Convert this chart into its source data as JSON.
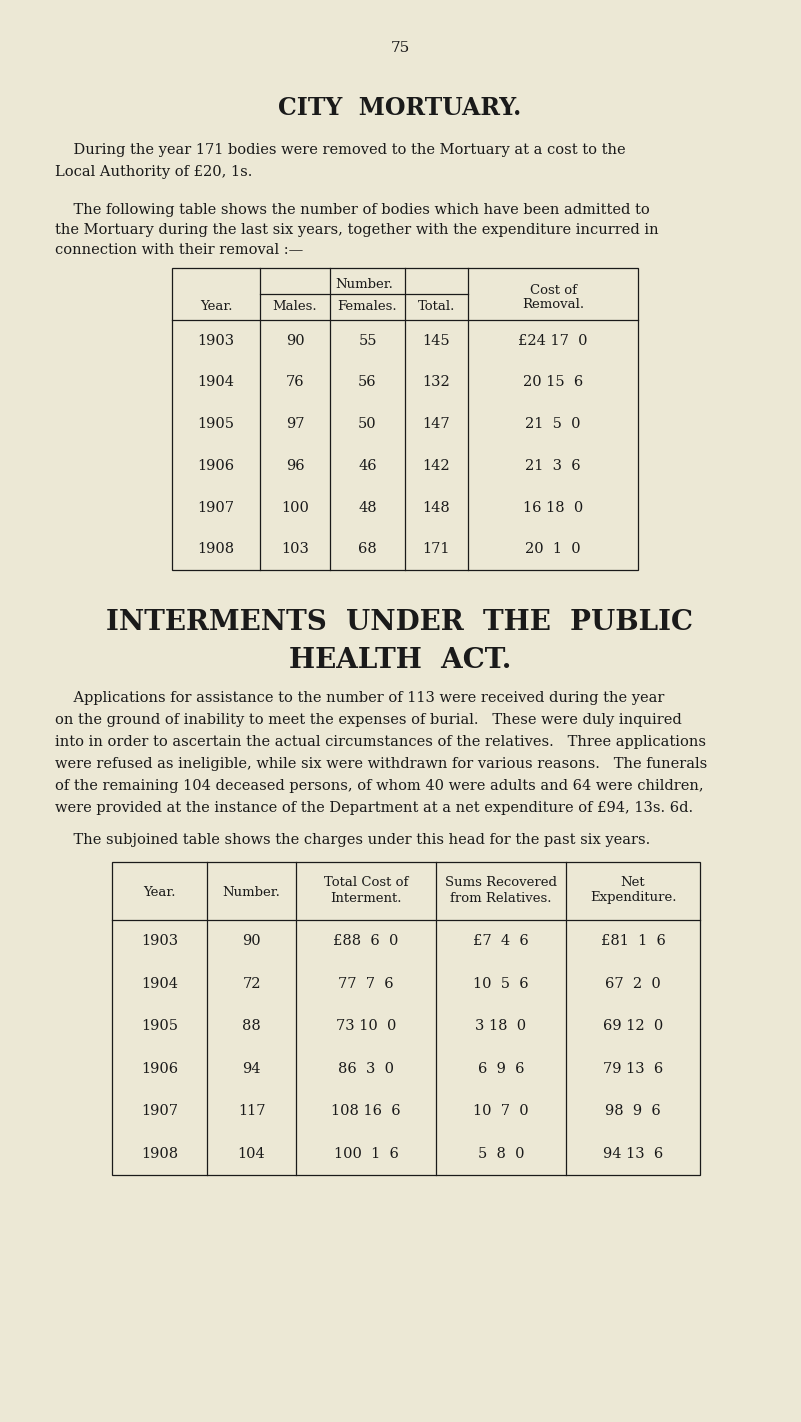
{
  "bg_color": "#ece8d5",
  "text_color": "#1a1a1a",
  "page_number": "75",
  "title1": "CITY  MORTUARY.",
  "para1_line1": "    During the year 171 bodies were removed to the Mortuary at a cost to the",
  "para1_line2": "Local Authority of £20, 1s.",
  "para2_line1": "    The following table shows the number of bodies which have been admitted to",
  "para2_line2": "the Mortuary during the last six years, together with the expenditure incurred in",
  "para2_line3": "connection with their removal :—",
  "table1_data": [
    [
      "1903",
      "90",
      "55",
      "145",
      "£24 17  0"
    ],
    [
      "1904",
      "76",
      "56",
      "132",
      "20 15  6"
    ],
    [
      "1905",
      "97",
      "50",
      "147",
      "21  5  0"
    ],
    [
      "1906",
      "96",
      "46",
      "142",
      "21  3  6"
    ],
    [
      "1907",
      "100",
      "48",
      "148",
      "16 18  0"
    ],
    [
      "1908",
      "103",
      "68",
      "171",
      "20  1  0"
    ]
  ],
  "title2_line1": "INTERMENTS  UNDER  THE  PUBLIC",
  "title2_line2": "HEALTH  ACT.",
  "para3_line1": "    Applications for assistance to the number of 113 were received during the year",
  "para3_line2": "on the ground of inability to meet the expenses of burial.   These were duly inquired",
  "para3_line3": "into in order to ascertain the actual circumstances of the relatives.   Three applications",
  "para3_line4": "were refused as ineligible, while six were withdrawn for various reasons.   The funerals",
  "para3_line5": "of the remaining 104 deceased persons, of whom 40 were adults and 64 were children,",
  "para3_line6": "were provided at the instance of the Department at a net expenditure of £94, 13s. 6d.",
  "para4": "    The subjoined table shows the charges under this head for the past six years.",
  "table2_data": [
    [
      "1903",
      "90",
      "£88  6  0",
      "£7  4  6",
      "£81  1  6"
    ],
    [
      "1904",
      "72",
      "77  7  6",
      "10  5  6",
      "67  2  0"
    ],
    [
      "1905",
      "88",
      "73 10  0",
      "3 18  0",
      "69 12  0"
    ],
    [
      "1906",
      "94",
      "86  3  0",
      "6  9  6",
      "79 13  6"
    ],
    [
      "1907",
      "117",
      "108 16  6",
      "10  7  0",
      "98  9  6"
    ],
    [
      "1908",
      "104",
      "100  1  6",
      "5  8  0",
      "94 13  6"
    ]
  ]
}
